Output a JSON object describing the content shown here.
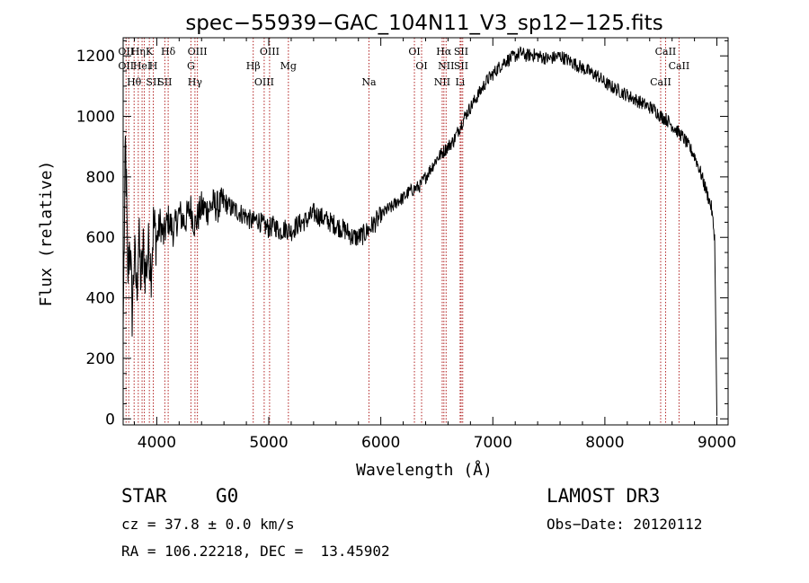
{
  "chart_data": {
    "type": "line",
    "title": "spec−55939−GAC_104N11_V3_sp12−125.fits",
    "xlabel": "Wavelength (Å)",
    "ylabel": "Flux (relative)",
    "xlim": [
      3700,
      9100
    ],
    "ylim": [
      -20,
      1260
    ],
    "xticks": [
      4000,
      5000,
      6000,
      7000,
      8000,
      9000
    ],
    "yticks": [
      0,
      200,
      400,
      600,
      800,
      1000,
      1200
    ],
    "series": [
      {
        "name": "spectrum",
        "points": [
          [
            3700,
            300
          ],
          [
            3710,
            600
          ],
          [
            3720,
            900
          ],
          [
            3730,
            750
          ],
          [
            3740,
            450
          ],
          [
            3760,
            600
          ],
          [
            3780,
            350
          ],
          [
            3800,
            550
          ],
          [
            3820,
            420
          ],
          [
            3840,
            600
          ],
          [
            3860,
            450
          ],
          [
            3880,
            560
          ],
          [
            3900,
            480
          ],
          [
            3930,
            570
          ],
          [
            3950,
            500
          ],
          [
            3970,
            640
          ],
          [
            4000,
            590
          ],
          [
            4030,
            650
          ],
          [
            4060,
            600
          ],
          [
            4100,
            660
          ],
          [
            4150,
            620
          ],
          [
            4200,
            680
          ],
          [
            4250,
            650
          ],
          [
            4300,
            700
          ],
          [
            4340,
            640
          ],
          [
            4400,
            700
          ],
          [
            4450,
            690
          ],
          [
            4500,
            710
          ],
          [
            4550,
            700
          ],
          [
            4600,
            720
          ],
          [
            4650,
            700
          ],
          [
            4700,
            690
          ],
          [
            4750,
            680
          ],
          [
            4800,
            670
          ],
          [
            4850,
            650
          ],
          [
            4900,
            660
          ],
          [
            4950,
            640
          ],
          [
            5000,
            630
          ],
          [
            5050,
            640
          ],
          [
            5100,
            620
          ],
          [
            5150,
            630
          ],
          [
            5200,
            620
          ],
          [
            5250,
            640
          ],
          [
            5300,
            650
          ],
          [
            5350,
            660
          ],
          [
            5400,
            680
          ],
          [
            5450,
            670
          ],
          [
            5500,
            660
          ],
          [
            5550,
            650
          ],
          [
            5600,
            640
          ],
          [
            5650,
            630
          ],
          [
            5700,
            620
          ],
          [
            5750,
            600
          ],
          [
            5800,
            600
          ],
          [
            5850,
            610
          ],
          [
            5900,
            630
          ],
          [
            5950,
            650
          ],
          [
            6000,
            670
          ],
          [
            6050,
            690
          ],
          [
            6100,
            700
          ],
          [
            6150,
            720
          ],
          [
            6200,
            730
          ],
          [
            6250,
            750
          ],
          [
            6300,
            760
          ],
          [
            6350,
            770
          ],
          [
            6400,
            800
          ],
          [
            6450,
            830
          ],
          [
            6500,
            860
          ],
          [
            6550,
            880
          ],
          [
            6600,
            900
          ],
          [
            6650,
            920
          ],
          [
            6700,
            960
          ],
          [
            6750,
            1000
          ],
          [
            6800,
            1030
          ],
          [
            6850,
            1060
          ],
          [
            6900,
            1090
          ],
          [
            6950,
            1120
          ],
          [
            7000,
            1140
          ],
          [
            7050,
            1160
          ],
          [
            7100,
            1180
          ],
          [
            7150,
            1190
          ],
          [
            7200,
            1200
          ],
          [
            7250,
            1210
          ],
          [
            7300,
            1200
          ],
          [
            7350,
            1205
          ],
          [
            7400,
            1200
          ],
          [
            7450,
            1195
          ],
          [
            7500,
            1190
          ],
          [
            7550,
            1195
          ],
          [
            7600,
            1200
          ],
          [
            7650,
            1190
          ],
          [
            7700,
            1180
          ],
          [
            7750,
            1170
          ],
          [
            7800,
            1160
          ],
          [
            7850,
            1150
          ],
          [
            7900,
            1140
          ],
          [
            7950,
            1130
          ],
          [
            8000,
            1110
          ],
          [
            8050,
            1100
          ],
          [
            8100,
            1090
          ],
          [
            8150,
            1080
          ],
          [
            8200,
            1070
          ],
          [
            8250,
            1060
          ],
          [
            8300,
            1050
          ],
          [
            8350,
            1040
          ],
          [
            8400,
            1030
          ],
          [
            8450,
            1020
          ],
          [
            8500,
            1000
          ],
          [
            8550,
            990
          ],
          [
            8600,
            970
          ],
          [
            8650,
            950
          ],
          [
            8700,
            930
          ],
          [
            8750,
            900
          ],
          [
            8800,
            870
          ],
          [
            8850,
            820
          ],
          [
            8900,
            760
          ],
          [
            8950,
            700
          ],
          [
            8980,
            600
          ],
          [
            8990,
            300
          ],
          [
            9000,
            10
          ]
        ]
      }
    ],
    "line_markers": [
      {
        "wave": 3726,
        "labels": [
          "OII",
          "OII"
        ]
      },
      {
        "wave": 3750,
        "labels": []
      },
      {
        "wave": 3798,
        "labels": [
          "Hθ"
        ]
      },
      {
        "wave": 3835,
        "labels": [
          "Hη"
        ]
      },
      {
        "wave": 3869,
        "labels": [
          "HeI"
        ]
      },
      {
        "wave": 3889,
        "labels": []
      },
      {
        "wave": 3934,
        "labels": [
          "K"
        ]
      },
      {
        "wave": 3969,
        "labels": [
          "H",
          "SII"
        ]
      },
      {
        "wave": 4072,
        "labels": [
          "SII"
        ]
      },
      {
        "wave": 4102,
        "labels": [
          "Hδ"
        ]
      },
      {
        "wave": 4305,
        "labels": [
          "G"
        ]
      },
      {
        "wave": 4341,
        "labels": [
          "Hγ"
        ]
      },
      {
        "wave": 4363,
        "labels": [
          "OIII"
        ]
      },
      {
        "wave": 4861,
        "labels": [
          "Hβ"
        ]
      },
      {
        "wave": 4959,
        "labels": [
          "OIII"
        ]
      },
      {
        "wave": 5007,
        "labels": [
          "OIII"
        ]
      },
      {
        "wave": 5175,
        "labels": [
          "Mg"
        ]
      },
      {
        "wave": 5894,
        "labels": [
          "Na"
        ]
      },
      {
        "wave": 6300,
        "labels": [
          "OI"
        ]
      },
      {
        "wave": 6364,
        "labels": [
          "OI"
        ]
      },
      {
        "wave": 6548,
        "labels": [
          "NII"
        ]
      },
      {
        "wave": 6563,
        "labels": [
          "Hα"
        ]
      },
      {
        "wave": 6583,
        "labels": [
          "NII"
        ]
      },
      {
        "wave": 6708,
        "labels": [
          "Li"
        ]
      },
      {
        "wave": 6717,
        "labels": [
          "SII",
          "SII"
        ]
      },
      {
        "wave": 6731,
        "labels": []
      },
      {
        "wave": 8498,
        "labels": [
          "CaII"
        ]
      },
      {
        "wave": 8542,
        "labels": [
          "CaII"
        ]
      },
      {
        "wave": 8662,
        "labels": [
          "CaII"
        ]
      }
    ]
  },
  "info": {
    "object_type": "STAR",
    "subclass": "G0",
    "survey": "LAMOST DR3",
    "redshift": "cz = 37.8 ± 0.0 km/s",
    "obs_date": "Obs−Date: 20120112",
    "coords": "RA = 106.22218, DEC =  13.45902"
  },
  "colors": {
    "marker": "#b22222",
    "spectrum": "#000000"
  }
}
